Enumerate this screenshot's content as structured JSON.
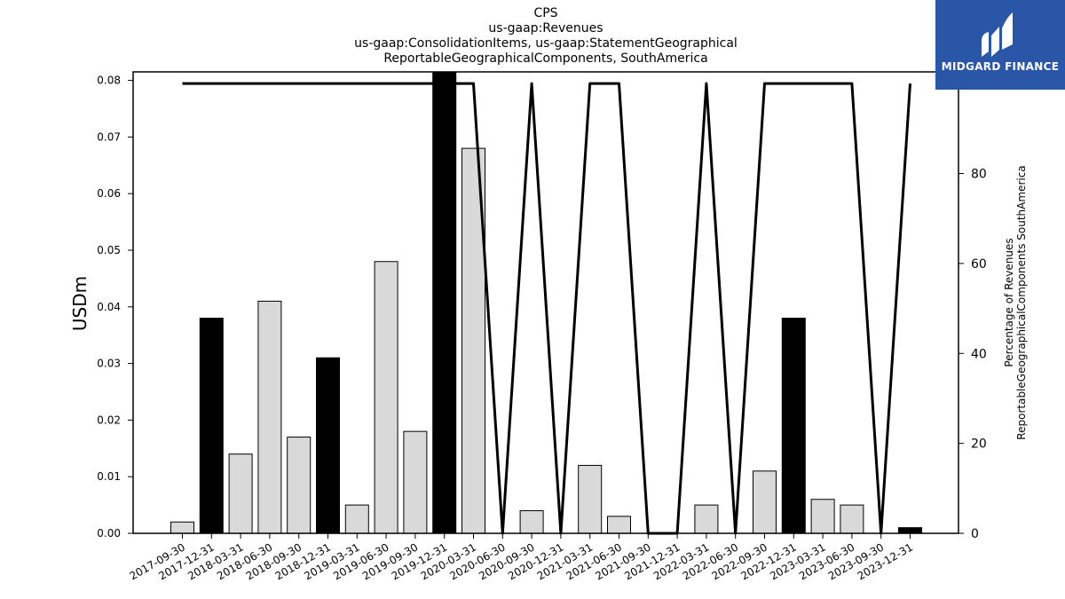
{
  "header": {
    "title_lines": [
      "CPS",
      "us-gaap:Revenues",
      "us-gaap:ConsolidationItems, us-gaap:StatementGeographical",
      "ReportableGeographicalComponents, SouthAmerica"
    ]
  },
  "logo": {
    "text": "MIDGARD FINANCE",
    "icon": "midgard-logo-icon",
    "bg_color": "#2a56a8"
  },
  "chart_data": {
    "type": "bar",
    "categories": [
      "2017-09-30",
      "2017-12-31",
      "2018-03-31",
      "2018-06-30",
      "2018-09-30",
      "2018-12-31",
      "2019-03-31",
      "2019-06-30",
      "2019-09-30",
      "2019-12-31",
      "2020-03-31",
      "2020-06-30",
      "2020-09-30",
      "2020-12-31",
      "2021-03-31",
      "2021-06-30",
      "2021-09-30",
      "2021-12-31",
      "2022-03-31",
      "2022-06-30",
      "2022-09-30",
      "2022-12-31",
      "2023-03-31",
      "2023-06-30",
      "2023-09-30",
      "2023-12-31"
    ],
    "series": [
      {
        "kind": "bar",
        "axis": "left",
        "values": [
          0.002,
          0.038,
          0.014,
          0.041,
          0.017,
          0.031,
          0.005,
          0.048,
          0.018,
          0.082,
          0.068,
          0,
          0.004,
          0,
          0.012,
          0.003,
          0,
          0,
          0.005,
          0,
          0.011,
          0.038,
          0.006,
          0.005,
          0,
          0.001
        ],
        "highlight": [
          false,
          true,
          false,
          false,
          false,
          true,
          false,
          false,
          false,
          true,
          false,
          false,
          false,
          false,
          false,
          false,
          false,
          false,
          false,
          false,
          false,
          true,
          false,
          false,
          false,
          true
        ],
        "color": "#d9d9d9",
        "highlight_color": "#000000"
      },
      {
        "kind": "line",
        "axis": "right",
        "values": [
          100,
          100,
          100,
          100,
          100,
          100,
          100,
          100,
          100,
          100,
          100,
          0,
          100,
          0,
          100,
          100,
          0,
          0,
          100,
          0,
          100,
          100,
          100,
          100,
          0,
          100
        ],
        "color": "#000000"
      }
    ],
    "ylabel": "USDm",
    "ylabel_right": [
      "Percentage of Revenues",
      "ReportableGeographicalComponents SouthAmerica"
    ],
    "ylim": [
      0,
      0.0815
    ],
    "ylim_right": [
      0,
      102.6
    ],
    "yticks": [
      0.0,
      0.01,
      0.02,
      0.03,
      0.04,
      0.05,
      0.06,
      0.07,
      0.08
    ],
    "yticks_right": [
      0,
      20,
      40,
      60,
      80,
      100
    ],
    "grid": false
  }
}
